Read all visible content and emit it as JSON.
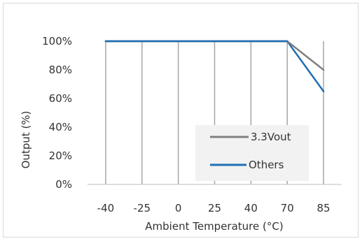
{
  "chart_data": {
    "type": "line",
    "title": "",
    "xlabel": "Ambient Temperature (°C)",
    "ylabel": "Output (%)",
    "categories": [
      "-40",
      "-25",
      "0",
      "25",
      "40",
      "70",
      "85"
    ],
    "y_ticks": [
      "0%",
      "20%",
      "40%",
      "60%",
      "80%",
      "100%"
    ],
    "ylim": [
      0,
      100
    ],
    "grid": "vertical",
    "legend_position": "right",
    "series": [
      {
        "name": "3.3Vout",
        "color": "#808080",
        "values": [
          100,
          100,
          100,
          100,
          100,
          100,
          80
        ]
      },
      {
        "name": "Others",
        "color": "#1f6fb4",
        "values": [
          100,
          100,
          100,
          100,
          100,
          100,
          65
        ]
      }
    ]
  }
}
